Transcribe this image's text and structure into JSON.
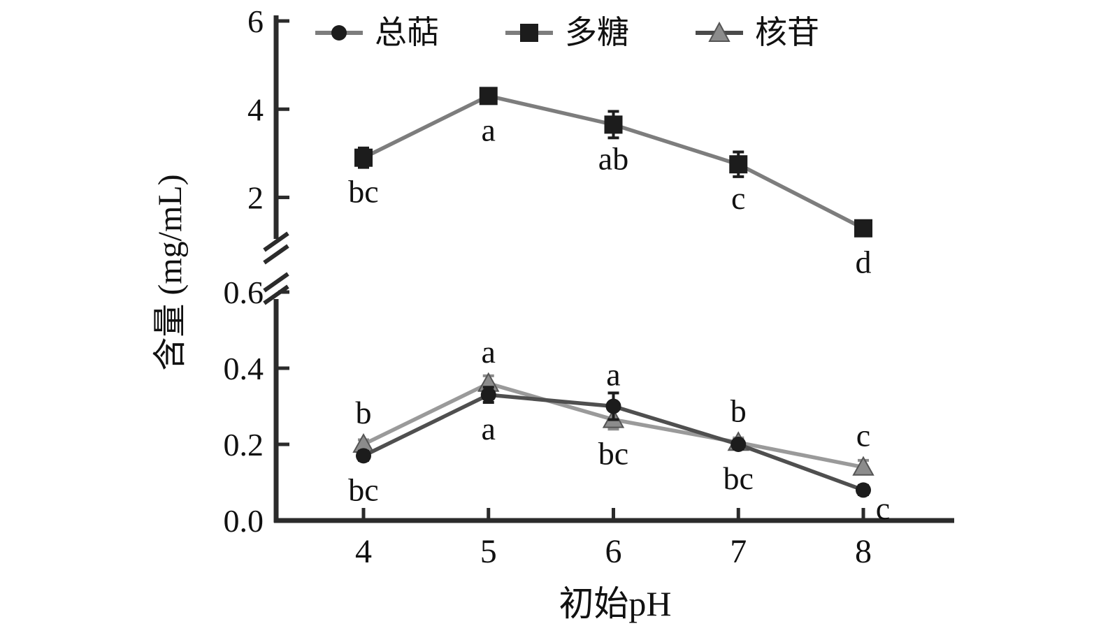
{
  "chart_data": {
    "type": "line",
    "title": "",
    "xlabel": "初始pH",
    "ylabel": "含量 (mg/mL)",
    "y_axis_break": true,
    "x_axis": {
      "ticks": [
        {
          "value": 4,
          "label": "4"
        },
        {
          "value": 5,
          "label": "5"
        },
        {
          "value": 6,
          "label": "6"
        },
        {
          "value": 7,
          "label": "7"
        },
        {
          "value": 8,
          "label": "8"
        }
      ]
    },
    "upper_panel": {
      "ylim": [
        0.9,
        6
      ],
      "ticks": [
        {
          "value": 2,
          "label": "2"
        },
        {
          "value": 4,
          "label": "4"
        },
        {
          "value": 6,
          "label": "6"
        }
      ]
    },
    "lower_panel": {
      "ylim": [
        0,
        0.6
      ],
      "ticks": [
        {
          "value": 0,
          "label": "0.0"
        },
        {
          "value": 0.2,
          "label": "0.2"
        },
        {
          "value": 0.4,
          "label": "0.4"
        },
        {
          "value": 0.6,
          "label": "0.6"
        }
      ]
    },
    "series": [
      {
        "name": "总萜",
        "panel": "lower",
        "marker": "circle",
        "marker_color": "#1c1c1c",
        "line_color": "#4f4f4f",
        "values": [
          0.17,
          0.33,
          0.3,
          0.2,
          0.08
        ],
        "errors": [
          0.012,
          0.02,
          0.035,
          0.012,
          0.012
        ],
        "point_labels": [
          "bc",
          "a",
          "a",
          "bc",
          "c"
        ],
        "label_side": [
          "below",
          "below",
          "above",
          "below",
          "below"
        ]
      },
      {
        "name": "多糖",
        "panel": "upper",
        "marker": "square",
        "marker_color": "#1c1c1c",
        "line_color": "#7d7d7d",
        "values": [
          2.9,
          4.3,
          3.65,
          2.75,
          1.3
        ],
        "errors": [
          0.22,
          0.12,
          0.3,
          0.28,
          0.07
        ],
        "point_labels": [
          "bc",
          "a",
          "ab",
          "c",
          "d"
        ],
        "label_side": [
          "below",
          "below",
          "below",
          "below",
          "below"
        ]
      },
      {
        "name": "核苷",
        "panel": "lower",
        "marker": "triangle",
        "marker_color": "#8c8c8c",
        "line_color": "#9a9a9a",
        "values": [
          0.2,
          0.36,
          0.265,
          0.205,
          0.14
        ],
        "errors": [
          0.012,
          0.02,
          0.025,
          0.012,
          0.018
        ],
        "point_labels": [
          "b",
          "a",
          "bc",
          "b",
          "c"
        ],
        "label_side": [
          "above",
          "above",
          "below",
          "above",
          "above"
        ]
      }
    ]
  }
}
